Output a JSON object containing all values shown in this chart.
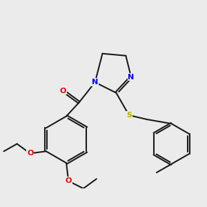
{
  "background_color": "#ebebeb",
  "bond_color": "#1a1a1a",
  "bond_width": 1.5,
  "atom_colors": {
    "N": "#0000ee",
    "O": "#ee0000",
    "S": "#bbaa00",
    "C": "#1a1a1a"
  },
  "figsize": [
    3.0,
    3.0
  ],
  "dpi": 100
}
